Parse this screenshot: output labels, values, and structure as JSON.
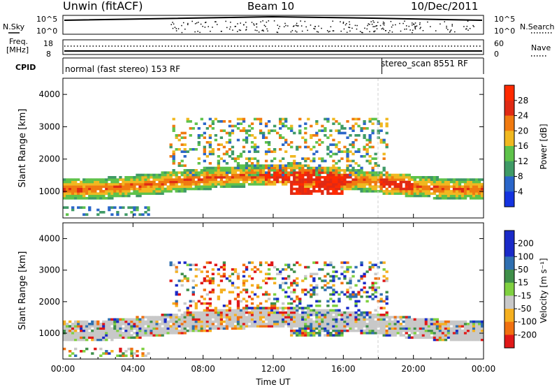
{
  "header": {
    "station": "Unwin (fitACF)",
    "beam": "Beam 10",
    "date": "10/Dec/2011"
  },
  "noise": {
    "left_label": "N.Sky",
    "right_label": "N.Search",
    "left_top": "10^5",
    "left_bottom": "10^0",
    "right_top": "10^5",
    "right_bottom": "10^0"
  },
  "freq": {
    "label_line1": "Freq.",
    "label_line2": "[MHz]",
    "left_top": "18",
    "left_bottom": "8",
    "right_top": "60",
    "right_bottom": "0",
    "right_label": "Nave"
  },
  "cpid": {
    "label": "CPID",
    "seg1": "normal (fast stereo) 153 RF",
    "seg2": "stereo_scan 8551 RF",
    "seg2_start_hour": 18.2
  },
  "x_axis": {
    "label": "Time UT",
    "ticks": [
      "00:00",
      "04:00",
      "08:00",
      "12:00",
      "16:00",
      "20:00",
      "00:00"
    ]
  },
  "power_panel": {
    "ylabel": "Slant Range [km]",
    "yticks": [
      "1000",
      "2000",
      "3000",
      "4000"
    ],
    "cbar_label": "Power [dB]",
    "cbar_ticks": [
      "4",
      "8",
      "12",
      "16",
      "20",
      "24",
      "28"
    ]
  },
  "velocity_panel": {
    "ylabel": "Slant Range [km]",
    "yticks": [
      "1000",
      "2000",
      "3000",
      "4000"
    ],
    "cbar_label": "Velocity [m s⁻¹]",
    "cbar_ticks": [
      "200",
      "100",
      "50",
      "15",
      "-15",
      "-50",
      "-100",
      "-200"
    ]
  },
  "colors": {
    "power": [
      "#1433e0",
      "#2a66c9",
      "#3f9a66",
      "#5ec24a",
      "#f0b820",
      "#f07a10",
      "#e02a14",
      "#ff2a00"
    ],
    "velocity": [
      "#1a2ac8",
      "#2f6fb0",
      "#3f8f4a",
      "#7fd040",
      "#c8c8c8",
      "#f5b020",
      "#f07010",
      "#e01818"
    ]
  },
  "chart_data": [
    {
      "type": "heatmap",
      "title": "Power",
      "xlabel": "Time UT",
      "ylabel": "Slant Range [km]",
      "xlim": [
        0,
        24
      ],
      "ylim": [
        180,
        4500
      ],
      "colorbar": {
        "label": "Power [dB]",
        "range": [
          0,
          32
        ],
        "ticks": [
          4,
          8,
          12,
          16,
          20,
          24,
          28
        ]
      },
      "note": "backscatter band near 1000-1600 km all day, strongest 12:00-16:00 (24-30 dB); patchy scatter up to ~3300 km 08:00-18:00"
    },
    {
      "type": "heatmap",
      "title": "Velocity",
      "xlabel": "Time UT",
      "ylabel": "Slant Range [km]",
      "xlim": [
        0,
        24
      ],
      "ylim": [
        180,
        4500
      ],
      "colorbar": {
        "label": "Velocity [m s⁻¹]",
        "range": [
          -250,
          250
        ],
        "ticks": [
          200,
          100,
          50,
          15,
          -15,
          -50,
          -100,
          -200
        ]
      },
      "note": "ground scatter (grey, |v|<15) dominates 1000-1600 km; negative velocities near 08:00-12:00, positive near 14:00-17:00"
    }
  ]
}
